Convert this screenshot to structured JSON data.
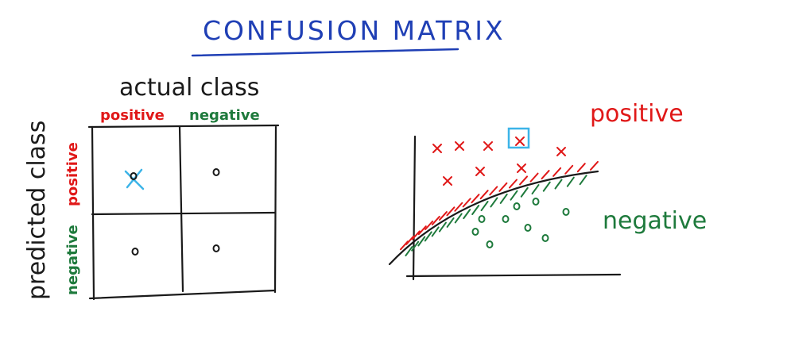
{
  "title": "CONFUSION MATRIX",
  "matrix": {
    "header_top": "actual class",
    "header_side": "predicted class",
    "col_positive": "positive",
    "col_negative": "negative",
    "row_positive": "positive",
    "row_negative": "negative",
    "cells": [
      {
        "row": "positive",
        "col": "positive",
        "mark": "o",
        "highlighted": true
      },
      {
        "row": "positive",
        "col": "negative",
        "mark": "o",
        "highlighted": false
      },
      {
        "row": "negative",
        "col": "positive",
        "mark": "o",
        "highlighted": false
      },
      {
        "row": "negative",
        "col": "negative",
        "mark": "o",
        "highlighted": false
      }
    ]
  },
  "scatter": {
    "label_positive": "positive",
    "label_negative": "negative",
    "positive_marker": "x",
    "negative_marker": "o"
  },
  "colors": {
    "title_blue": "#1f3fb5",
    "ink_black": "#1a1a1a",
    "positive_red": "#e01818",
    "negative_green": "#1e7a3c",
    "highlight_cyan": "#3cb4e8"
  }
}
